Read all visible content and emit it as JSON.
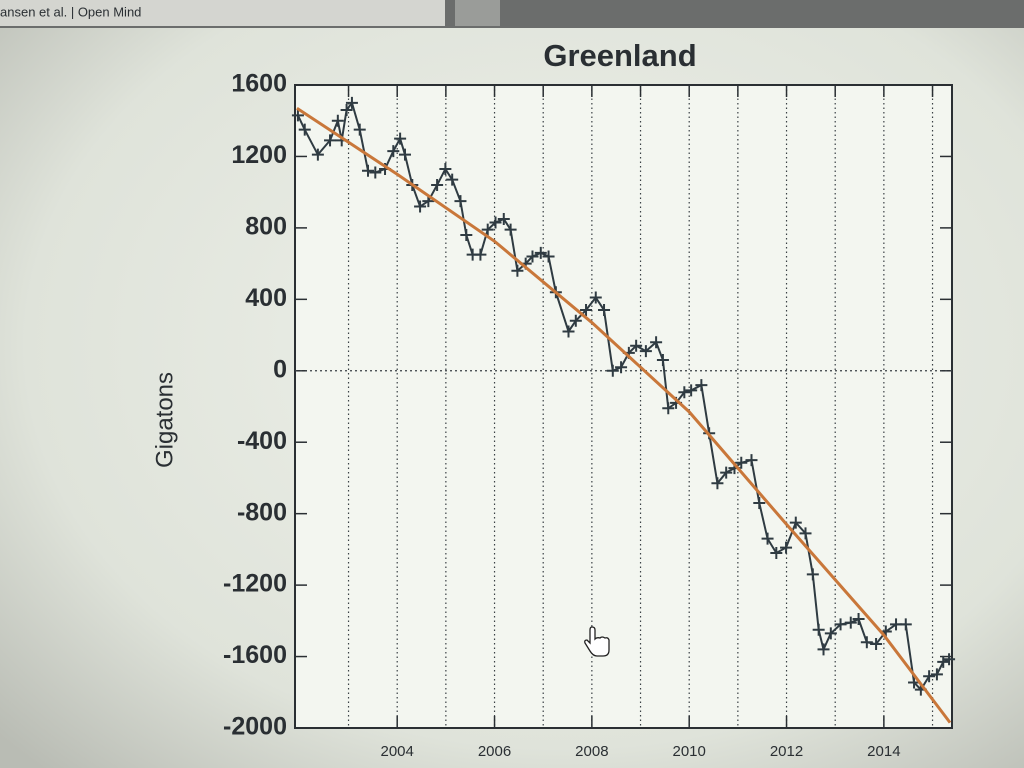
{
  "tab": {
    "title": "ansen et al. | Open Mind"
  },
  "chart_data": {
    "type": "line",
    "title": "Greenland",
    "y_label": "Gigatons",
    "xlim": [
      2001.9,
      2015.4
    ],
    "ylim": [
      -2000,
      1600
    ],
    "xticks": [
      2004,
      2006,
      2008,
      2010,
      2012,
      2014
    ],
    "xgrid": [
      2003,
      2004,
      2005,
      2006,
      2007,
      2008,
      2009,
      2010,
      2011,
      2012,
      2013,
      2014,
      2015
    ],
    "yticks": [
      -2000,
      -1600,
      -1200,
      -800,
      -400,
      0,
      400,
      800,
      1200,
      1600
    ],
    "hline": 0,
    "series": [
      {
        "color": "#2f3b42",
        "marker": "plus",
        "x": [
          2001.96,
          2002.1,
          2002.37,
          2002.62,
          2002.78,
          2002.86,
          2002.96,
          2003.07,
          2003.23,
          2003.4,
          2003.55,
          2003.75,
          2003.92,
          2004.06,
          2004.16,
          2004.31,
          2004.47,
          2004.64,
          2004.82,
          2004.99,
          2005.13,
          2005.3,
          2005.42,
          2005.55,
          2005.71,
          2005.86,
          2006.02,
          2006.19,
          2006.33,
          2006.47,
          2006.64,
          2006.78,
          2006.95,
          2007.11,
          2007.26,
          2007.52,
          2007.67,
          2007.88,
          2008.08,
          2008.25,
          2008.43,
          2008.6,
          2008.76,
          2008.91,
          2009.11,
          2009.32,
          2009.46,
          2009.57,
          2009.73,
          2009.9,
          2010.04,
          2010.25,
          2010.41,
          2010.58,
          2010.76,
          2010.93,
          2011.07,
          2011.28,
          2011.44,
          2011.61,
          2011.79,
          2011.99,
          2012.19,
          2012.39,
          2012.54,
          2012.66,
          2012.76,
          2012.91,
          2013.11,
          2013.32,
          2013.48,
          2013.65,
          2013.84,
          2014.04,
          2014.25,
          2014.45,
          2014.62,
          2014.76,
          2014.93,
          2015.09,
          2015.22,
          2015.34
        ],
        "values": [
          1430,
          1350,
          1210,
          1290,
          1400,
          1290,
          1460,
          1500,
          1350,
          1120,
          1110,
          1130,
          1230,
          1300,
          1210,
          1040,
          920,
          950,
          1040,
          1130,
          1070,
          950,
          760,
          650,
          650,
          790,
          830,
          850,
          790,
          560,
          600,
          640,
          660,
          640,
          440,
          220,
          280,
          340,
          410,
          340,
          0,
          20,
          100,
          140,
          110,
          160,
          60,
          -210,
          -180,
          -120,
          -110,
          -80,
          -350,
          -630,
          -570,
          -545,
          -515,
          -500,
          -740,
          -940,
          -1020,
          -990,
          -850,
          -910,
          -1140,
          -1450,
          -1560,
          -1470,
          -1420,
          -1410,
          -1390,
          -1520,
          -1530,
          -1460,
          -1420,
          -1420,
          -1745,
          -1785,
          -1710,
          -1700,
          -1630,
          -1615
        ]
      },
      {
        "color": "#c9773a",
        "marker": "none",
        "x": [
          2001.94,
          2004,
          2006,
          2008,
          2010,
          2012,
          2014,
          2015.36
        ],
        "values": [
          1470,
          1100,
          725,
          270,
          -230,
          -860,
          -1480,
          -1970
        ]
      }
    ]
  }
}
